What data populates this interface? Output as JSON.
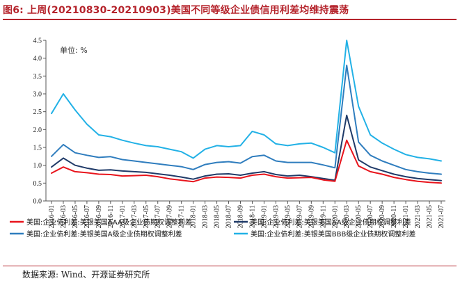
{
  "header": {
    "title": "图6:  上周(20210830-20210903)美国不同等级企业债信用利差均维持震荡"
  },
  "footer": {
    "source": "数据来源:  Wind、开源证券研究所"
  },
  "colors": {
    "AAA": "#e8141c",
    "AA": "#1f3a68",
    "A": "#2f7dbe",
    "BBB": "#22b1e6",
    "accent": "#b5242c"
  },
  "chart_data": {
    "type": "line",
    "title": "",
    "unit_label": "单位:  %",
    "xlabel": "",
    "ylabel": "",
    "ylim": [
      0,
      4.5
    ],
    "yticks": [
      "0.0",
      "0.5",
      "1.0",
      "1.5",
      "2.0",
      "2.5",
      "3.0",
      "3.5",
      "4.0",
      "4.5"
    ],
    "grid": false,
    "legend_position": "bottom",
    "x": [
      "2016-01",
      "2016-03",
      "2016-05",
      "2016-07",
      "2016-09",
      "2016-11",
      "2017-01",
      "2017-03",
      "2017-05",
      "2017-07",
      "2017-09",
      "2017-11",
      "2018-01",
      "2018-03",
      "2018-05",
      "2018-07",
      "2018-09",
      "2018-11",
      "2019-01",
      "2019-03",
      "2019-05",
      "2019-07",
      "2019-09",
      "2019-11",
      "2020-01",
      "2020-03",
      "2020-05",
      "2020-07",
      "2020-09",
      "2020-11",
      "2021-01",
      "2021-03",
      "2021-05",
      "2021-07"
    ],
    "series": [
      {
        "key": "AAA",
        "name": "美国:企业债利差:美银美国AAA级企业债期权调整利差",
        "values": [
          0.78,
          0.95,
          0.82,
          0.79,
          0.75,
          0.74,
          0.7,
          0.71,
          0.72,
          0.68,
          0.62,
          0.58,
          0.54,
          0.64,
          0.67,
          0.66,
          0.64,
          0.72,
          0.75,
          0.68,
          0.64,
          0.65,
          0.66,
          0.59,
          0.55,
          1.7,
          0.98,
          0.82,
          0.75,
          0.66,
          0.6,
          0.55,
          0.52,
          0.5
        ]
      },
      {
        "key": "AA",
        "name": "美国:企业债利差:美银美国AA级企业债期权调整利差",
        "values": [
          0.95,
          1.2,
          1.0,
          0.92,
          0.86,
          0.87,
          0.84,
          0.82,
          0.8,
          0.76,
          0.72,
          0.67,
          0.61,
          0.7,
          0.75,
          0.76,
          0.72,
          0.78,
          0.82,
          0.74,
          0.7,
          0.72,
          0.68,
          0.63,
          0.58,
          2.4,
          1.15,
          0.95,
          0.85,
          0.75,
          0.68,
          0.63,
          0.6,
          0.57
        ]
      },
      {
        "key": "A",
        "name": "美国:企业债利差:美银美国A级企业债期权调整利差",
        "values": [
          1.25,
          1.58,
          1.35,
          1.28,
          1.22,
          1.24,
          1.16,
          1.12,
          1.08,
          1.04,
          1.0,
          0.96,
          0.88,
          1.02,
          1.08,
          1.1,
          1.06,
          1.24,
          1.28,
          1.12,
          1.08,
          1.08,
          1.08,
          1.01,
          0.93,
          3.8,
          1.65,
          1.28,
          1.12,
          1.0,
          0.88,
          0.82,
          0.78,
          0.75
        ]
      },
      {
        "key": "BBB",
        "name": "美国:企业债利差:美银美国BBB级企业债期权调整利差",
        "values": [
          2.45,
          3.0,
          2.55,
          2.15,
          1.85,
          1.8,
          1.7,
          1.62,
          1.55,
          1.52,
          1.45,
          1.38,
          1.2,
          1.45,
          1.55,
          1.52,
          1.55,
          1.95,
          1.85,
          1.6,
          1.55,
          1.6,
          1.62,
          1.5,
          1.35,
          4.5,
          2.65,
          1.85,
          1.62,
          1.45,
          1.3,
          1.22,
          1.18,
          1.12
        ]
      }
    ]
  }
}
